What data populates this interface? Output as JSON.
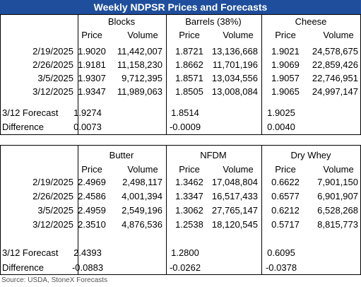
{
  "title": "Weekly NDPSR Prices and Forecasts",
  "tables": [
    {
      "groups": [
        "Blocks",
        "Barrels (38%)",
        "Cheese"
      ],
      "subheaders": [
        "Price",
        "Volume",
        "Price",
        "Volume",
        "Price",
        "Volume"
      ],
      "rows": [
        [
          "2/19/2025",
          "1.9020",
          "11,442,007",
          "1.8721",
          "13,136,668",
          "1.9021",
          "24,578,675"
        ],
        [
          "2/26/2025",
          "1.9181",
          "11,158,230",
          "1.8662",
          "11,701,196",
          "1.9069",
          "22,859,426"
        ],
        [
          "3/5/2025",
          "1.9307",
          "9,712,395",
          "1.8571",
          "13,034,556",
          "1.9057",
          "22,746,951"
        ],
        [
          "3/12/2025",
          "1.9347",
          "11,989,063",
          "1.8505",
          "13,008,084",
          "1.9065",
          "24,997,147"
        ]
      ],
      "forecast": [
        "3/12 Forecast",
        "1.9274",
        "1.8514",
        "1.9025"
      ],
      "difference": [
        "Difference",
        "0.0073",
        "-0.0009",
        "0.0040"
      ]
    },
    {
      "groups": [
        "Butter",
        "NFDM",
        "Dry Whey"
      ],
      "subheaders": [
        "Price",
        "Volume",
        "Price",
        "Volume",
        "Price",
        "Volume"
      ],
      "rows": [
        [
          "2/19/2025",
          "2.4969",
          "2,498,117",
          "1.3462",
          "17,048,804",
          "0.6622",
          "7,901,150"
        ],
        [
          "2/26/2025",
          "2.4586",
          "4,001,394",
          "1.3347",
          "16,517,433",
          "0.6577",
          "6,901,907"
        ],
        [
          "3/5/2025",
          "2.4959",
          "2,549,196",
          "1.3062",
          "27,765,147",
          "0.6212",
          "6,528,268"
        ],
        [
          "3/12/2025",
          "2.3510",
          "4,876,536",
          "1.2538",
          "18,120,545",
          "0.5717",
          "8,815,773"
        ]
      ],
      "forecast": [
        "3/12 Forecast",
        "2.4393",
        "1.2800",
        "0.6095"
      ],
      "difference": [
        "Difference",
        "-0.0883",
        "-0.0262",
        "-0.0378"
      ]
    }
  ],
  "source": "Source: USDA, StoneX Forecasts"
}
